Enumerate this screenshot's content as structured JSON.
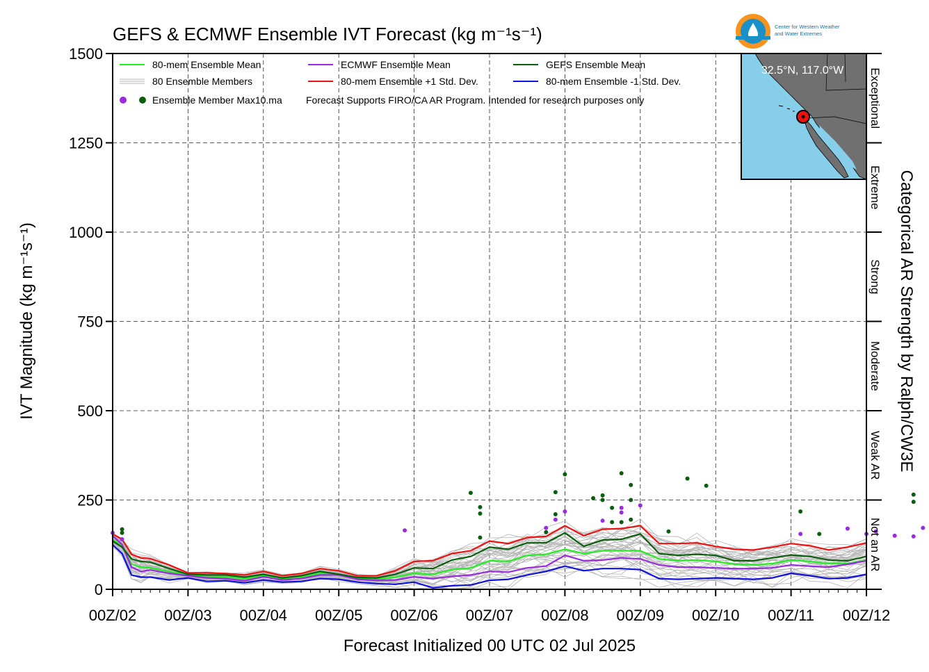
{
  "chart_data": {
    "type": "line",
    "title": "GEFS & ECMWF Ensemble IVT Forecast (kg m⁻¹s⁻¹)",
    "ylabel": "IVT Magnitude (kg m⁻¹s⁻¹)",
    "xlabel": "Forecast Initialized 00 UTC 02 Jul 2025",
    "right_label": "Categorical AR Strength by Ralph/CW3E",
    "ylim": [
      0,
      1500
    ],
    "xlim": [
      0,
      10
    ],
    "y_ticks": [
      "0",
      "250",
      "500",
      "750",
      "1000",
      "1250",
      "1500"
    ],
    "x_ticks": [
      "00Z/02",
      "00Z/03",
      "00Z/04",
      "00Z/05",
      "00Z/06",
      "00Z/07",
      "00Z/08",
      "00Z/09",
      "00Z/10",
      "00Z/11",
      "00Z/12"
    ],
    "x_unit": "days since 00Z/02",
    "grid": true,
    "legend_position": "top-left",
    "categories_right": [
      {
        "label": "Not an AR",
        "from": 0,
        "to": 250
      },
      {
        "label": "Weak AR",
        "from": 250,
        "to": 500
      },
      {
        "label": "Moderate",
        "from": 500,
        "to": 750
      },
      {
        "label": "Strong",
        "from": 750,
        "to": 1000
      },
      {
        "label": "Extreme",
        "from": 1000,
        "to": 1250
      },
      {
        "label": "Exceptional",
        "from": 1250,
        "to": 1500
      }
    ],
    "legend": [
      {
        "label": "80-mem Ensemble Mean",
        "color": "#22ee22"
      },
      {
        "label": "ECMWF Ensemble Mean",
        "color": "#9a2be0"
      },
      {
        "label": "GEFS Ensemble Mean",
        "color": "#0b5e0b"
      },
      {
        "label": "80 Ensemble Members",
        "color": "#b4b4b4"
      },
      {
        "label": "80-mem Ensemble +1 Std. Dev.",
        "color": "#ee1111"
      },
      {
        "label": "80-mem Ensemble -1 Std. Dev.",
        "color": "#1111dd"
      },
      {
        "label": "Ensemble Member Max10.ma",
        "colors": [
          "#9a2be0",
          "#0b5e0b"
        ]
      }
    ],
    "disclaimer": "Forecast Supports FIRO/CA AR Program. Intended for research purposes only",
    "series": [
      {
        "name": "80-mem Ensemble Mean",
        "color": "#22ee22",
        "x": [
          0,
          0.125,
          0.25,
          0.375,
          0.5,
          0.75,
          1,
          1.25,
          1.5,
          1.75,
          2,
          2.25,
          2.5,
          2.75,
          3,
          3.25,
          3.5,
          3.75,
          4,
          4.25,
          4.5,
          4.75,
          5,
          5.25,
          5.5,
          5.75,
          6,
          6.25,
          6.5,
          6.75,
          7,
          7.25,
          7.5,
          7.75,
          8,
          8.25,
          8.5,
          8.75,
          9,
          9.25,
          9.5,
          9.75,
          10
        ],
        "values": [
          140,
          120,
          70,
          62,
          60,
          50,
          40,
          35,
          35,
          30,
          38,
          30,
          34,
          45,
          40,
          30,
          28,
          34,
          45,
          42,
          55,
          60,
          80,
          78,
          95,
          98,
          112,
          100,
          108,
          108,
          108,
          85,
          80,
          82,
          78,
          70,
          68,
          72,
          82,
          78,
          72,
          72,
          82
        ]
      },
      {
        "name": "ECMWF Ensemble Mean",
        "color": "#9a2be0",
        "x": [
          0,
          0.125,
          0.25,
          0.375,
          0.5,
          0.75,
          1,
          1.25,
          1.5,
          1.75,
          2,
          2.25,
          2.5,
          2.75,
          3,
          3.25,
          3.5,
          3.75,
          4,
          4.25,
          4.5,
          4.75,
          5,
          5.25,
          5.5,
          5.75,
          6,
          6.25,
          6.5,
          6.75,
          7,
          7.25,
          7.5,
          7.75,
          8,
          8.25,
          8.5,
          8.75,
          9,
          9.25,
          9.5,
          9.75,
          10
        ],
        "values": [
          150,
          125,
          62,
          50,
          54,
          45,
          38,
          32,
          30,
          24,
          35,
          26,
          30,
          40,
          40,
          28,
          25,
          26,
          35,
          30,
          36,
          40,
          50,
          48,
          60,
          65,
          95,
          80,
          82,
          88,
          85,
          68,
          62,
          62,
          60,
          58,
          58,
          60,
          68,
          65,
          62,
          70,
          80
        ]
      },
      {
        "name": "GEFS Ensemble Mean",
        "color": "#0b5e0b",
        "x": [
          0,
          0.125,
          0.25,
          0.375,
          0.5,
          0.75,
          1,
          1.25,
          1.5,
          1.75,
          2,
          2.25,
          2.5,
          2.75,
          3,
          3.25,
          3.5,
          3.75,
          4,
          4.25,
          4.5,
          4.75,
          5,
          5.25,
          5.5,
          5.75,
          6,
          6.25,
          6.5,
          6.75,
          7,
          7.25,
          7.5,
          7.75,
          8,
          8.25,
          8.5,
          8.75,
          9,
          9.25,
          9.5,
          9.75,
          10
        ],
        "values": [
          135,
          118,
          85,
          78,
          76,
          58,
          42,
          40,
          40,
          34,
          42,
          32,
          38,
          50,
          42,
          33,
          32,
          42,
          60,
          58,
          82,
          92,
          118,
          112,
          130,
          130,
          158,
          120,
          138,
          140,
          155,
          100,
          95,
          98,
          95,
          80,
          80,
          88,
          96,
          92,
          82,
          80,
          92
        ]
      },
      {
        "name": "80-mem Ensemble +1 Std. Dev.",
        "color": "#ee1111",
        "x": [
          0,
          0.125,
          0.25,
          0.375,
          0.5,
          0.75,
          1,
          1.25,
          1.5,
          1.75,
          2,
          2.25,
          2.5,
          2.75,
          3,
          3.25,
          3.5,
          3.75,
          4,
          4.25,
          4.5,
          4.75,
          5,
          5.25,
          5.5,
          5.75,
          6,
          6.25,
          6.5,
          6.75,
          7,
          7.25,
          7.5,
          7.75,
          8,
          8.25,
          8.5,
          8.75,
          9,
          9.25,
          9.5,
          9.75,
          10
        ],
        "values": [
          155,
          140,
          98,
          88,
          86,
          68,
          46,
          46,
          44,
          40,
          50,
          38,
          44,
          58,
          52,
          38,
          38,
          52,
          78,
          80,
          100,
          108,
          135,
          128,
          145,
          148,
          178,
          150,
          168,
          170,
          178,
          128,
          128,
          130,
          120,
          112,
          110,
          118,
          128,
          122,
          110,
          118,
          130
        ]
      },
      {
        "name": "80-mem Ensemble -1 Std. Dev.",
        "color": "#1111dd",
        "x": [
          0,
          0.125,
          0.25,
          0.375,
          0.5,
          0.75,
          1,
          1.25,
          1.5,
          1.75,
          2,
          2.25,
          2.5,
          2.75,
          3,
          3.25,
          3.5,
          3.75,
          4,
          4.25,
          4.5,
          4.75,
          5,
          5.25,
          5.5,
          5.75,
          6,
          6.25,
          6.5,
          6.75,
          7,
          7.25,
          7.5,
          7.75,
          8,
          8.25,
          8.5,
          8.75,
          9,
          9.25,
          9.5,
          9.75,
          10
        ],
        "values": [
          125,
          100,
          40,
          34,
          34,
          26,
          32,
          22,
          24,
          18,
          26,
          20,
          22,
          30,
          28,
          20,
          16,
          14,
          20,
          4,
          10,
          12,
          25,
          28,
          40,
          50,
          65,
          52,
          58,
          58,
          55,
          30,
          28,
          30,
          32,
          30,
          28,
          32,
          45,
          38,
          30,
          32,
          42
        ]
      }
    ],
    "member_max_points": [
      {
        "group": "ECMWF",
        "color": "#9a2be0",
        "points": [
          [
            0,
            158
          ],
          [
            0.125,
            140
          ],
          [
            3.875,
            165
          ],
          [
            5.75,
            172
          ],
          [
            5.875,
            195
          ],
          [
            6,
            218
          ],
          [
            6.5,
            192
          ],
          [
            6.75,
            228
          ],
          [
            6.75,
            215
          ],
          [
            7,
            235
          ],
          [
            9.75,
            170
          ],
          [
            10.0,
            155
          ],
          [
            10.125,
            162
          ],
          [
            10.375,
            150
          ],
          [
            10.625,
            148
          ],
          [
            10.75,
            172
          ],
          [
            9.125,
            155
          ]
        ]
      },
      {
        "group": "GEFS",
        "color": "#0b5e0b",
        "points": [
          [
            0.125,
            168
          ],
          [
            0.125,
            158
          ],
          [
            4.75,
            270
          ],
          [
            4.875,
            230
          ],
          [
            4.875,
            212
          ],
          [
            4.875,
            145
          ],
          [
            5.75,
            160
          ],
          [
            5.875,
            272
          ],
          [
            5.875,
            210
          ],
          [
            6,
            322
          ],
          [
            6.375,
            255
          ],
          [
            6.5,
            263
          ],
          [
            6.5,
            250
          ],
          [
            6.625,
            228
          ],
          [
            6.625,
            188
          ],
          [
            6.75,
            325
          ],
          [
            6.75,
            188
          ],
          [
            6.875,
            292
          ],
          [
            6.875,
            250
          ],
          [
            6.875,
            195
          ],
          [
            7.375,
            162
          ],
          [
            7.625,
            310
          ],
          [
            7.875,
            290
          ],
          [
            9.125,
            218
          ],
          [
            9.375,
            155
          ],
          [
            10.625,
            265
          ],
          [
            10.625,
            245
          ]
        ]
      }
    ]
  },
  "logo": {
    "name": "CW3E",
    "line1": "Center for Western Weather",
    "line2": "and Water Extremes",
    "colors": {
      "outer": "#f7941d",
      "inner": "#1b8fc7"
    }
  },
  "inset_map": {
    "location_label": "32.5°N, 117.0°W",
    "ocean_color": "#87ceeb",
    "land_color": "#707070"
  }
}
